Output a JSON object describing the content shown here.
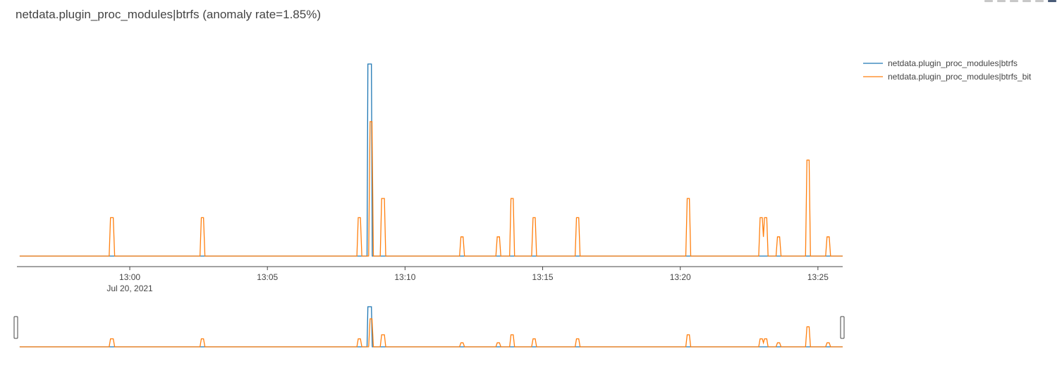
{
  "chart_data": {
    "type": "line",
    "title": "netdata.plugin_proc_modules|btrfs (anomaly rate=1.85%)",
    "xlabel": "",
    "ylabel": "",
    "x_range_min": [
      55.9,
      85.9
    ],
    "ylim": [
      0,
      1
    ],
    "x_ticks": [
      {
        "min": 60,
        "label": "13:00",
        "sub": "Jul 20, 2021"
      },
      {
        "min": 65,
        "label": "13:05",
        "sub": ""
      },
      {
        "min": 70,
        "label": "13:10",
        "sub": ""
      },
      {
        "min": 75,
        "label": "13:15",
        "sub": ""
      },
      {
        "min": 80,
        "label": "13:20",
        "sub": ""
      },
      {
        "min": 85,
        "label": "13:25",
        "sub": ""
      }
    ],
    "grid": false,
    "legend_position": "top-right",
    "rangeslider": true,
    "series": [
      {
        "name": "netdata.plugin_proc_modules|btrfs",
        "color": "#1f77b4",
        "points": [
          [
            56.0,
            0
          ],
          [
            68.62,
            0
          ],
          [
            68.65,
            1
          ],
          [
            68.78,
            1
          ],
          [
            68.81,
            0
          ],
          [
            85.9,
            0
          ]
        ]
      },
      {
        "name": "netdata.plugin_proc_modules|btrfs_bit",
        "color": "#ff7f0e",
        "points": [
          [
            56.0,
            0
          ],
          [
            59.25,
            0
          ],
          [
            59.3,
            0.2
          ],
          [
            59.4,
            0.2
          ],
          [
            59.45,
            0
          ],
          [
            62.55,
            0
          ],
          [
            62.6,
            0.2
          ],
          [
            62.68,
            0.2
          ],
          [
            62.73,
            0
          ],
          [
            68.25,
            0
          ],
          [
            68.3,
            0.2
          ],
          [
            68.38,
            0.2
          ],
          [
            68.43,
            0
          ],
          [
            68.68,
            0
          ],
          [
            68.73,
            0.7
          ],
          [
            68.8,
            0.7
          ],
          [
            68.85,
            0
          ],
          [
            69.1,
            0
          ],
          [
            69.15,
            0.3
          ],
          [
            69.25,
            0.3
          ],
          [
            69.3,
            0
          ],
          [
            71.98,
            0
          ],
          [
            72.03,
            0.1
          ],
          [
            72.11,
            0.1
          ],
          [
            72.16,
            0
          ],
          [
            73.3,
            0
          ],
          [
            73.35,
            0.1
          ],
          [
            73.43,
            0.1
          ],
          [
            73.48,
            0
          ],
          [
            73.8,
            0
          ],
          [
            73.85,
            0.3
          ],
          [
            73.93,
            0.3
          ],
          [
            73.98,
            0
          ],
          [
            74.6,
            0
          ],
          [
            74.65,
            0.2
          ],
          [
            74.73,
            0.2
          ],
          [
            74.78,
            0
          ],
          [
            76.18,
            0
          ],
          [
            76.23,
            0.2
          ],
          [
            76.31,
            0.2
          ],
          [
            76.36,
            0
          ],
          [
            80.2,
            0
          ],
          [
            80.25,
            0.3
          ],
          [
            80.33,
            0.3
          ],
          [
            80.38,
            0
          ],
          [
            82.85,
            0
          ],
          [
            82.9,
            0.2
          ],
          [
            82.98,
            0.2
          ],
          [
            83.02,
            0.1
          ],
          [
            83.06,
            0.2
          ],
          [
            83.14,
            0.2
          ],
          [
            83.19,
            0
          ],
          [
            83.48,
            0
          ],
          [
            83.53,
            0.1
          ],
          [
            83.61,
            0.1
          ],
          [
            83.66,
            0
          ],
          [
            84.55,
            0
          ],
          [
            84.6,
            0.5
          ],
          [
            84.68,
            0.5
          ],
          [
            84.73,
            0
          ],
          [
            85.28,
            0
          ],
          [
            85.33,
            0.1
          ],
          [
            85.41,
            0.1
          ],
          [
            85.46,
            0
          ],
          [
            85.9,
            0
          ]
        ]
      }
    ]
  }
}
